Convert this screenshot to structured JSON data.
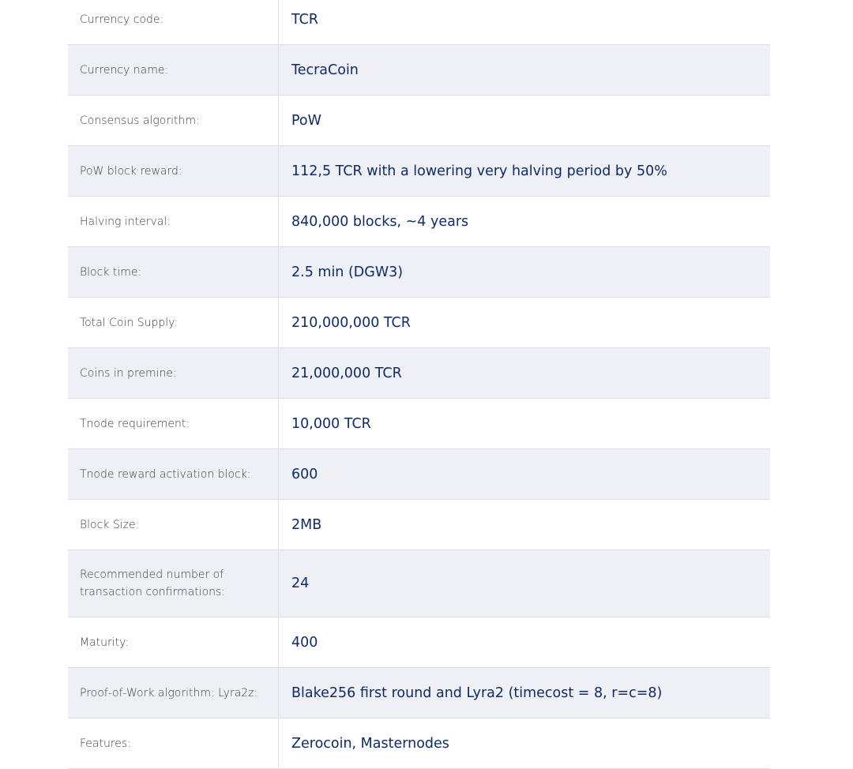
{
  "rows": [
    {
      "label": "Currency code:",
      "value": "TCR"
    },
    {
      "label": "Currency name:",
      "value": "TecraCoin"
    },
    {
      "label": "Consensus algorithm:",
      "value": "PoW"
    },
    {
      "label": "PoW block reward:",
      "value": "112,5 TCR with a lowering very halving period by 50%"
    },
    {
      "label": "Halving interval:",
      "value": "840,000 blocks, ~4 years"
    },
    {
      "label": "Block time:",
      "value": "2.5 min (DGW3)"
    },
    {
      "label": "Total Coin Supply:",
      "value": "210,000,000 TCR"
    },
    {
      "label": "Coins in premine:",
      "value": "21,000,000 TCR"
    },
    {
      "label": "Tnode requirement:",
      "value": "10,000 TCR"
    },
    {
      "label": "Tnode reward activation block:",
      "value": "600"
    },
    {
      "label": "Block Size:",
      "value": "2MB"
    },
    {
      "label": "Recommended number of transaction confirmations:",
      "value": "24"
    },
    {
      "label": "Maturity:",
      "value": "400"
    },
    {
      "label": "Proof-of-Work algorithm: Lyra2z:",
      "value": "Blake256 first round and Lyra2 (timecost = 8, r=c=8)"
    },
    {
      "label": "Features:",
      "value": "Zerocoin, Masternodes"
    }
  ]
}
